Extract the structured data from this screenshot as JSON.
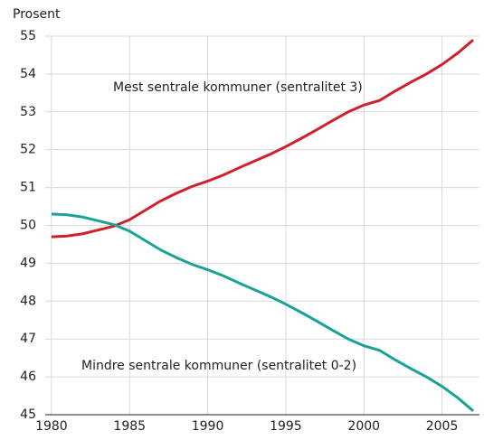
{
  "chart_data": {
    "type": "line",
    "y_axis_label": "Prosent",
    "x": [
      1980,
      1981,
      1982,
      1983,
      1984,
      1985,
      1986,
      1987,
      1988,
      1989,
      1990,
      1991,
      1992,
      1993,
      1994,
      1995,
      1996,
      1997,
      1998,
      1999,
      2000,
      2001,
      2002,
      2003,
      2004,
      2005,
      2006,
      2007
    ],
    "series": [
      {
        "name": "Mest sentrale kommuner (sentralitet 3)",
        "color": "#d0202e",
        "values": [
          49.7,
          49.72,
          49.78,
          49.88,
          49.98,
          50.15,
          50.4,
          50.65,
          50.85,
          51.03,
          51.17,
          51.33,
          51.52,
          51.7,
          51.88,
          52.08,
          52.3,
          52.53,
          52.77,
          53.0,
          53.18,
          53.3,
          53.55,
          53.78,
          54.0,
          54.25,
          54.55,
          54.9
        ]
      },
      {
        "name": "Mindre sentrale kommuner (sentralitet 0-2)",
        "color": "#1aa393",
        "values": [
          50.3,
          50.28,
          50.22,
          50.12,
          50.02,
          49.85,
          49.6,
          49.35,
          49.15,
          48.97,
          48.83,
          48.67,
          48.48,
          48.3,
          48.12,
          47.92,
          47.7,
          47.47,
          47.23,
          47.0,
          46.82,
          46.7,
          46.45,
          46.22,
          46.0,
          45.75,
          45.45,
          45.1
        ]
      }
    ],
    "xlim": [
      1979.6,
      2007.4
    ],
    "xticks": [
      1980,
      1985,
      1990,
      1995,
      2000,
      2005
    ],
    "ylim": [
      45,
      55
    ],
    "yticks": [
      45,
      46,
      47,
      48,
      49,
      50,
      51,
      52,
      53,
      54,
      55
    ],
    "grid": true
  }
}
